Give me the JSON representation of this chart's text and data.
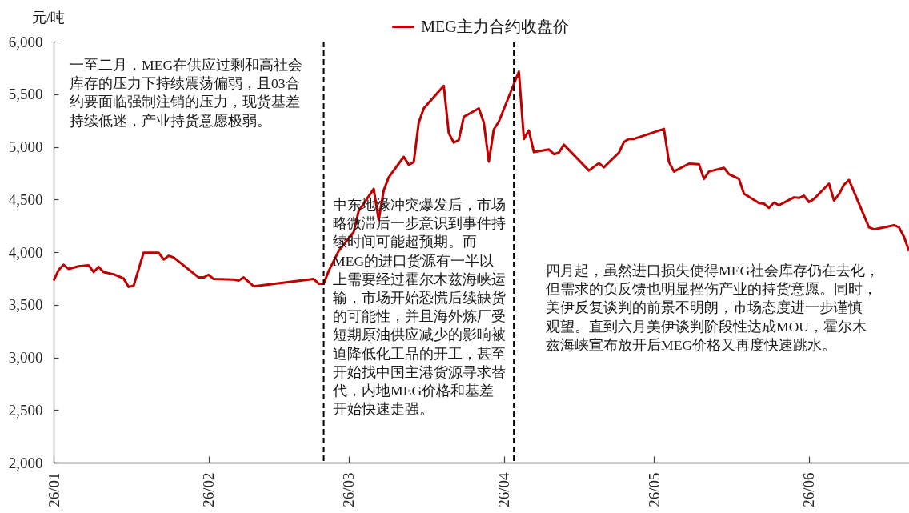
{
  "chart_data": {
    "type": "line",
    "ylabel": "元/吨",
    "x": [
      "--01-01",
      "--01-02",
      "--01-03",
      "--01-04",
      "--01-06",
      "--01-08",
      "--01-09",
      "--01-10",
      "--01-11",
      "--01-13",
      "--01-15",
      "--01-16",
      "--01-17",
      "--01-19",
      "--01-22",
      "--01-23",
      "--01-24",
      "--01-25",
      "--01-30",
      "--01-31",
      "--02-01",
      "--02-02",
      "--02-06",
      "--02-07",
      "--02-08",
      "--02-10",
      "--02-22",
      "--02-23",
      "--02-24",
      "--02-25",
      "--02-27",
      "--03-02",
      "--03-03",
      "--03-06",
      "--03-07",
      "--03-08",
      "--03-09",
      "--03-12",
      "--03-13",
      "--03-14",
      "--03-15",
      "--03-16",
      "--03-20",
      "--03-21",
      "--03-22",
      "--03-23",
      "--03-24",
      "--03-27",
      "--03-28",
      "--03-29",
      "--03-30",
      "--03-31",
      "--04-04",
      "--04-05",
      "--04-06",
      "--04-07",
      "--04-10",
      "--04-11",
      "--04-12",
      "--04-13",
      "--04-18",
      "--04-20",
      "--04-21",
      "--04-24",
      "--04-25",
      "--04-26",
      "--04-27",
      "--05-03",
      "--05-04",
      "--05-05",
      "--05-08",
      "--05-10",
      "--05-11",
      "--05-12",
      "--05-15",
      "--05-16",
      "--05-18",
      "--05-19",
      "--05-22",
      "--05-23",
      "--05-24",
      "--05-25",
      "--05-26",
      "--05-29",
      "--05-30",
      "--05-31",
      "--06-01",
      "--06-02",
      "--06-05",
      "--06-06",
      "--06-07",
      "--06-08",
      "--06-09",
      "--06-13",
      "--06-14",
      "--06-18",
      "--06-19",
      "--06-20",
      "--06-21"
    ],
    "series": [
      {
        "name": "MEG主力合约收盘价",
        "color": "#c00000",
        "values": [
          3730,
          3830,
          3880,
          3840,
          3865,
          3875,
          3810,
          3860,
          3810,
          3790,
          3750,
          3670,
          3680,
          3995,
          3995,
          3930,
          3965,
          3950,
          3760,
          3760,
          3785,
          3745,
          3740,
          3730,
          3760,
          3675,
          3745,
          3700,
          3700,
          3820,
          4010,
          4190,
          4390,
          4600,
          4305,
          4585,
          4710,
          4905,
          4830,
          4855,
          5230,
          5365,
          5580,
          5130,
          5040,
          5065,
          5285,
          5365,
          5230,
          4860,
          5165,
          5240,
          5715,
          5075,
          5155,
          4950,
          4975,
          4930,
          4945,
          5020,
          4775,
          4845,
          4805,
          4945,
          5045,
          5075,
          5075,
          5170,
          4855,
          4765,
          4840,
          4835,
          4695,
          4765,
          4800,
          4740,
          4695,
          4555,
          4465,
          4460,
          4420,
          4470,
          4445,
          4520,
          4515,
          4535,
          4475,
          4505,
          4650,
          4490,
          4550,
          4640,
          4685,
          4235,
          4215,
          4255,
          4235,
          4145,
          4010
        ]
      }
    ],
    "xlim": [
      "--01-01",
      "--06-21"
    ],
    "xticks": [
      {
        "value": "--01-01",
        "label": "26/01"
      },
      {
        "value": "--02-01",
        "label": "26/02"
      },
      {
        "value": "--03-01",
        "label": "26/03"
      },
      {
        "value": "--04-01",
        "label": "26/04"
      },
      {
        "value": "--05-01",
        "label": "26/05"
      },
      {
        "value": "--06-01",
        "label": "26/06"
      }
    ],
    "ylim": [
      2000,
      6000
    ],
    "yticks": [
      {
        "value": 2000,
        "label": "2,000"
      },
      {
        "value": 2500,
        "label": "2,500"
      },
      {
        "value": 3000,
        "label": "3,000"
      },
      {
        "value": 3500,
        "label": "3,500"
      },
      {
        "value": 4000,
        "label": "4,000"
      },
      {
        "value": 4500,
        "label": "4,500"
      },
      {
        "value": 5000,
        "label": "5,000"
      },
      {
        "value": 5500,
        "label": "5,500"
      },
      {
        "value": 6000,
        "label": "6,000"
      }
    ],
    "legend": "top",
    "ref_lines": [
      {
        "axis": "x",
        "value": "--02-24",
        "color": "#000000",
        "line_style": "dashed"
      },
      {
        "axis": "x",
        "value": "--04-03",
        "color": "#000000",
        "line_style": "dashed"
      }
    ],
    "annotations": [
      "一至二月，MEG在供应过剩和高社会库存的压力下持续震荡偏弱，且03合约要面临强制注销的压力，现货基差持续低迷，产业持货意愿极弱。",
      "中东地缘冲突爆发后，市场略微滞后一步意识到事件持续时间可能超预期。而MEG的进口货源有一半以上需要经过霍尔木兹海峡运输，市场开始恐慌后续缺货的可能性，并且海外炼厂受短期原油供应减少的影响被迫降低化工品的开工，甚至开始找中国主港货源寻求替代，内地MEG价格和基差开始快速走强。",
      "四月起，虽然进口损失使得MEG社会库存仍在去化，但需求的负反馈也明显挫伤产业的持货意愿。同时，美伊反复谈判的前景不明朗，市场态度进一步谨慎观望。直到六月美伊谈判阶段性达成MOU，霍尔木兹海峡宣布放开后MEG价格又再度快速跳水。"
    ]
  }
}
